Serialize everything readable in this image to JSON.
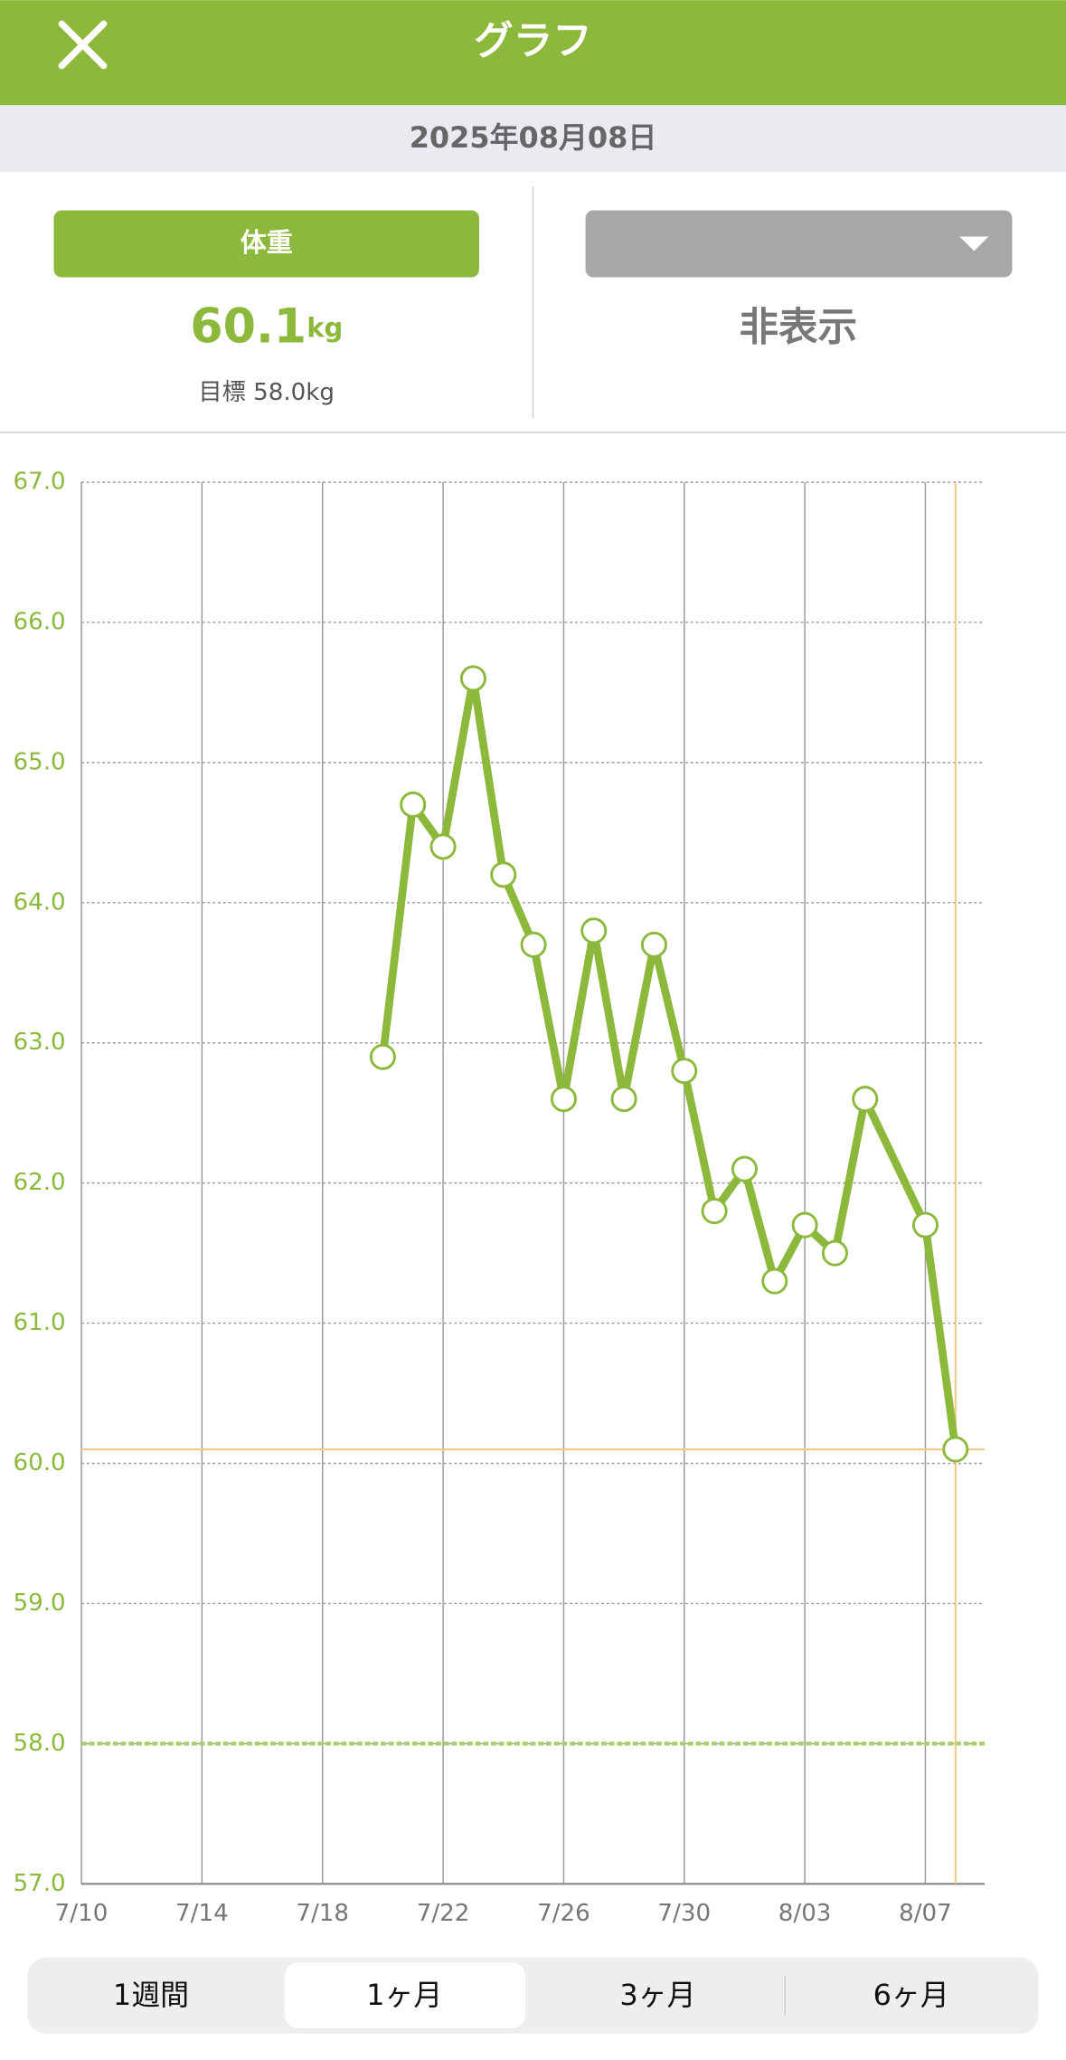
{
  "header": {
    "title": "グラフ",
    "date": "2025年08月08日"
  },
  "left_panel": {
    "button": "体重",
    "value": "60.1",
    "unit": "kg",
    "goal": "目標 58.0kg"
  },
  "right_panel": {
    "value": "非表示"
  },
  "chart_data": {
    "type": "line",
    "x": [
      "7/20",
      "7/21",
      "7/22",
      "7/23",
      "7/24",
      "7/25",
      "7/26",
      "7/27",
      "7/28",
      "7/29",
      "7/30",
      "7/31",
      "8/01",
      "8/02",
      "8/03",
      "8/04",
      "8/05",
      "8/07",
      "8/08"
    ],
    "series": [
      {
        "color": "#8cb93c",
        "values": [
          62.9,
          64.7,
          64.4,
          65.6,
          64.2,
          63.7,
          62.6,
          63.8,
          62.6,
          63.7,
          62.8,
          61.8,
          62.1,
          61.3,
          61.7,
          61.5,
          62.6,
          61.7,
          60.1
        ]
      }
    ],
    "xlim": [
      "7/10",
      "8/08"
    ],
    "xticks": [
      "7/10",
      "7/14",
      "7/18",
      "7/22",
      "7/26",
      "7/30",
      "8/03",
      "8/07"
    ],
    "ylim": [
      57,
      67
    ],
    "yticks": [
      {
        "value": 57,
        "label": "57.0"
      },
      {
        "value": 58,
        "label": "58.0"
      },
      {
        "value": 59,
        "label": "59.0"
      },
      {
        "value": 60,
        "label": "60.0"
      },
      {
        "value": 61,
        "label": "61.0"
      },
      {
        "value": 62,
        "label": "62.0"
      },
      {
        "value": 63,
        "label": "63.0"
      },
      {
        "value": 64,
        "label": "64.0"
      },
      {
        "value": 65,
        "label": "65.0"
      },
      {
        "value": 66,
        "label": "66.0"
      },
      {
        "value": 67,
        "label": "67.0"
      }
    ],
    "goal": 58,
    "current": 60.1,
    "current_x": "8/08",
    "grid": true
  },
  "tabs": {
    "items": [
      "1週間",
      "1ヶ月",
      "3ヶ月",
      "6ヶ月"
    ],
    "active": 1
  }
}
